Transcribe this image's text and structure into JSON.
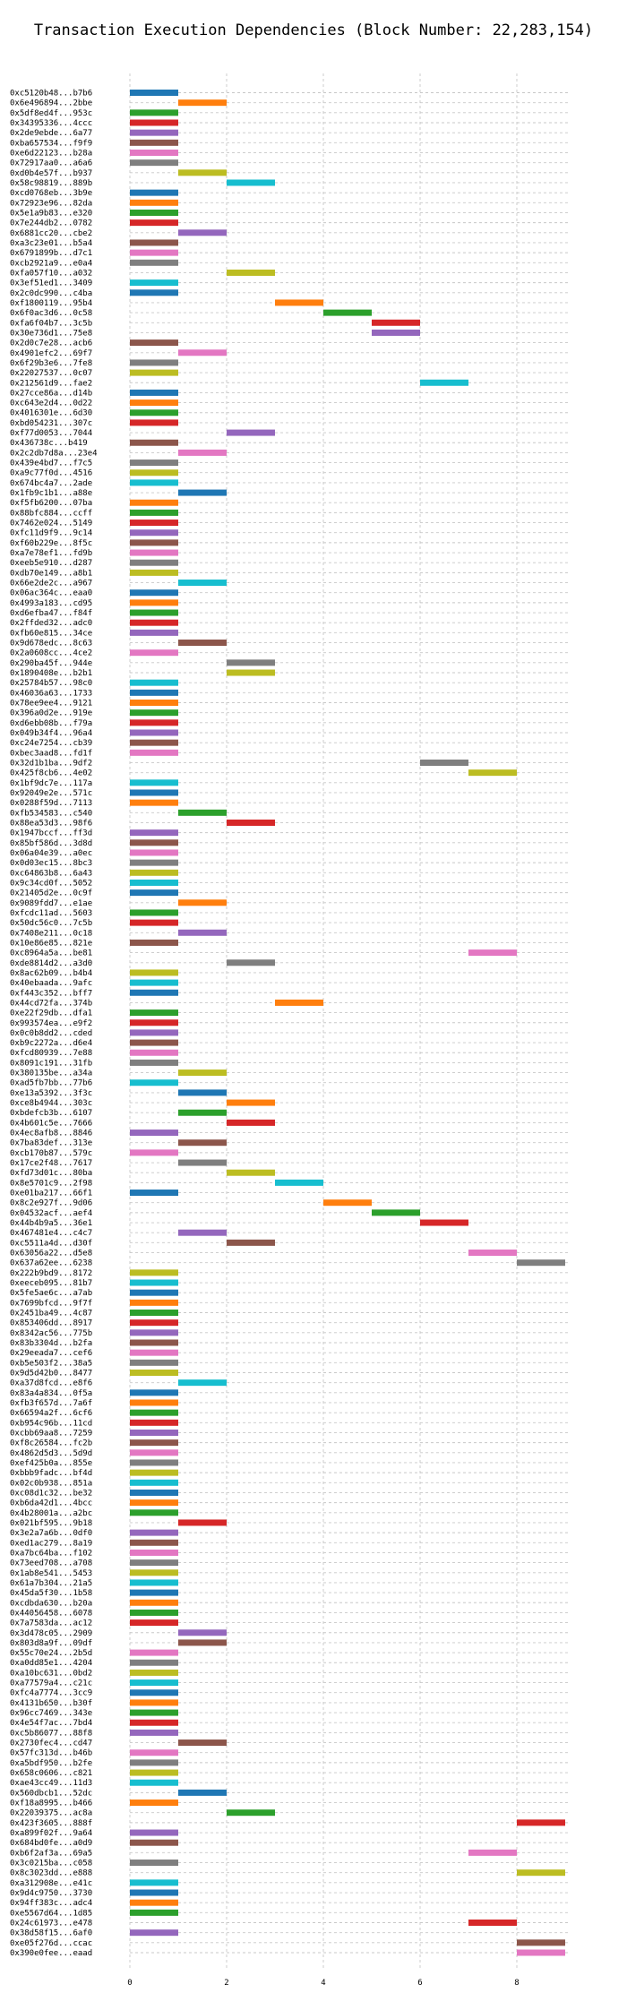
{
  "chart_data": {
    "type": "bar",
    "orientation": "horizontal",
    "title": "Transaction Execution Dependencies (Block Number: 22,283,154)",
    "xlabel": "",
    "ylabel": "",
    "xlim": [
      0,
      9
    ],
    "x_ticks": [
      0,
      2,
      4,
      6,
      8
    ],
    "grid": true,
    "legend": "none",
    "palette": [
      "#1f77b4",
      "#ff7f0e",
      "#2ca02c",
      "#d62728",
      "#9467bd",
      "#8c564b",
      "#e377c2",
      "#7f7f7f",
      "#bcbd22",
      "#17becf"
    ],
    "transactions": [
      {
        "label": "0xc5120b48...b7b6",
        "start": 0,
        "end": 1
      },
      {
        "label": "0x6e496894...2bbe",
        "start": 1,
        "end": 2
      },
      {
        "label": "0x5df8ed4f...953c",
        "start": 0,
        "end": 1
      },
      {
        "label": "0x34395336...4ccc",
        "start": 0,
        "end": 1
      },
      {
        "label": "0x2de9ebde...6a77",
        "start": 0,
        "end": 1
      },
      {
        "label": "0xba657534...f9f9",
        "start": 0,
        "end": 1
      },
      {
        "label": "0xe6d22123...b28a",
        "start": 0,
        "end": 1
      },
      {
        "label": "0x72917aa0...a6a6",
        "start": 0,
        "end": 1
      },
      {
        "label": "0xd0b4e57f...b937",
        "start": 1,
        "end": 2
      },
      {
        "label": "0x58c98819...889b",
        "start": 2,
        "end": 3
      },
      {
        "label": "0xcd0768eb...3b9e",
        "start": 0,
        "end": 1
      },
      {
        "label": "0x72923e96...82da",
        "start": 0,
        "end": 1
      },
      {
        "label": "0x5e1a9b83...e320",
        "start": 0,
        "end": 1
      },
      {
        "label": "0x7e244db2...0782",
        "start": 0,
        "end": 1
      },
      {
        "label": "0x6881cc20...cbe2",
        "start": 1,
        "end": 2
      },
      {
        "label": "0xa3c23e01...b5a4",
        "start": 0,
        "end": 1
      },
      {
        "label": "0x6791899b...d7c1",
        "start": 0,
        "end": 1
      },
      {
        "label": "0xcb2921a9...e0a4",
        "start": 0,
        "end": 1
      },
      {
        "label": "0xfa057f10...a032",
        "start": 2,
        "end": 3
      },
      {
        "label": "0x3ef51ed1...3409",
        "start": 0,
        "end": 1
      },
      {
        "label": "0x2c0dc990...c4ba",
        "start": 0,
        "end": 1
      },
      {
        "label": "0xf1800119...95b4",
        "start": 3,
        "end": 4
      },
      {
        "label": "0x6f0ac3d6...0c58",
        "start": 4,
        "end": 5
      },
      {
        "label": "0xfa6f04b7...3c5b",
        "start": 5,
        "end": 6
      },
      {
        "label": "0x30e736d1...75e8",
        "start": 5,
        "end": 6
      },
      {
        "label": "0x2d0c7e28...acb6",
        "start": 0,
        "end": 1
      },
      {
        "label": "0x4901efc2...69f7",
        "start": 1,
        "end": 2
      },
      {
        "label": "0x6f29b3e6...7fe8",
        "start": 0,
        "end": 1
      },
      {
        "label": "0x22027537...0c07",
        "start": 0,
        "end": 1
      },
      {
        "label": "0x212561d9...fae2",
        "start": 6,
        "end": 7
      },
      {
        "label": "0x27cce86a...d14b",
        "start": 0,
        "end": 1
      },
      {
        "label": "0xc643e2d4...0d22",
        "start": 0,
        "end": 1
      },
      {
        "label": "0x4016301e...6d30",
        "start": 0,
        "end": 1
      },
      {
        "label": "0xbd054231...307c",
        "start": 0,
        "end": 1
      },
      {
        "label": "0xf77d0053...7044",
        "start": 2,
        "end": 3
      },
      {
        "label": "0x436738c...b419",
        "start": 0,
        "end": 1
      },
      {
        "label": "0x2c2db7d8a...23e4",
        "start": 1,
        "end": 2
      },
      {
        "label": "0x439e4bd7...f7c5",
        "start": 0,
        "end": 1
      },
      {
        "label": "0xa9c77f0d...4516",
        "start": 0,
        "end": 1
      },
      {
        "label": "0x674bc4a7...2ade",
        "start": 0,
        "end": 1
      },
      {
        "label": "0x1fb9c1b1...a88e",
        "start": 1,
        "end": 2
      },
      {
        "label": "0xf5fb6200...07ba",
        "start": 0,
        "end": 1
      },
      {
        "label": "0x88bfc884...ccff",
        "start": 0,
        "end": 1
      },
      {
        "label": "0x7462e024...5149",
        "start": 0,
        "end": 1
      },
      {
        "label": "0xfc11d9f9...9c14",
        "start": 0,
        "end": 1
      },
      {
        "label": "0xf60b229e...8f5c",
        "start": 0,
        "end": 1
      },
      {
        "label": "0xa7e78ef1...fd9b",
        "start": 0,
        "end": 1
      },
      {
        "label": "0xeeb5e910...d287",
        "start": 0,
        "end": 1
      },
      {
        "label": "0xdb70e149...a8b1",
        "start": 0,
        "end": 1
      },
      {
        "label": "0x66e2de2c...a967",
        "start": 1,
        "end": 2
      },
      {
        "label": "0x06ac364c...eaa0",
        "start": 0,
        "end": 1
      },
      {
        "label": "0x4993a183...cd95",
        "start": 0,
        "end": 1
      },
      {
        "label": "0xd6efba47...f84f",
        "start": 0,
        "end": 1
      },
      {
        "label": "0x2ffded32...adc0",
        "start": 0,
        "end": 1
      },
      {
        "label": "0xfb60e815...34ce",
        "start": 0,
        "end": 1
      },
      {
        "label": "0x9d678edc...8c63",
        "start": 1,
        "end": 2
      },
      {
        "label": "0x2a0608cc...4ce2",
        "start": 0,
        "end": 1
      },
      {
        "label": "0x290ba45f...944e",
        "start": 2,
        "end": 3
      },
      {
        "label": "0x1890408e...b2b1",
        "start": 2,
        "end": 3
      },
      {
        "label": "0x25784b57...98c0",
        "start": 0,
        "end": 1
      },
      {
        "label": "0x46036a63...1733",
        "start": 0,
        "end": 1
      },
      {
        "label": "0x78ee9ee4...9121",
        "start": 0,
        "end": 1
      },
      {
        "label": "0x396a0d2e...919e",
        "start": 0,
        "end": 1
      },
      {
        "label": "0xd6ebb08b...f79a",
        "start": 0,
        "end": 1
      },
      {
        "label": "0x049b34f4...96a4",
        "start": 0,
        "end": 1
      },
      {
        "label": "0xc24e7254...cb39",
        "start": 0,
        "end": 1
      },
      {
        "label": "0xbec3aad8...fd1f",
        "start": 0,
        "end": 1
      },
      {
        "label": "0x32d1b1ba...9df2",
        "start": 6,
        "end": 7
      },
      {
        "label": "0x425f8cb6...4e02",
        "start": 7,
        "end": 8
      },
      {
        "label": "0x1bf9dc7e...117a",
        "start": 0,
        "end": 1
      },
      {
        "label": "0x92049e2e...571c",
        "start": 0,
        "end": 1
      },
      {
        "label": "0x0288f59d...7113",
        "start": 0,
        "end": 1
      },
      {
        "label": "0xfb534583...c540",
        "start": 1,
        "end": 2
      },
      {
        "label": "0x88ea53d3...98f6",
        "start": 2,
        "end": 3
      },
      {
        "label": "0x1947bccf...ff3d",
        "start": 0,
        "end": 1
      },
      {
        "label": "0x85bf586d...3d8d",
        "start": 0,
        "end": 1
      },
      {
        "label": "0x06a04e39...a0ec",
        "start": 0,
        "end": 1
      },
      {
        "label": "0x0d03ec15...8bc3",
        "start": 0,
        "end": 1
      },
      {
        "label": "0xc64863b8...6a43",
        "start": 0,
        "end": 1
      },
      {
        "label": "0x9c34cd0f...5052",
        "start": 0,
        "end": 1
      },
      {
        "label": "0x21405d2e...0c9f",
        "start": 0,
        "end": 1
      },
      {
        "label": "0x9089fdd7...e1ae",
        "start": 1,
        "end": 2
      },
      {
        "label": "0xfcdc11ad...5603",
        "start": 0,
        "end": 1
      },
      {
        "label": "0x50dc56c0...7c5b",
        "start": 0,
        "end": 1
      },
      {
        "label": "0x7408e211...0c18",
        "start": 1,
        "end": 2
      },
      {
        "label": "0x10e86e85...821e",
        "start": 0,
        "end": 1
      },
      {
        "label": "0xc8964a5a...be81",
        "start": 7,
        "end": 8
      },
      {
        "label": "0xde8814d2...a3d0",
        "start": 2,
        "end": 3
      },
      {
        "label": "0x8ac62b09...b4b4",
        "start": 0,
        "end": 1
      },
      {
        "label": "0x40ebaada...9afc",
        "start": 0,
        "end": 1
      },
      {
        "label": "0xf443c352...bff7",
        "start": 0,
        "end": 1
      },
      {
        "label": "0x44cd72fa...374b",
        "start": 3,
        "end": 4
      },
      {
        "label": "0xe22f29db...dfa1",
        "start": 0,
        "end": 1
      },
      {
        "label": "0x993574ea...e9f2",
        "start": 0,
        "end": 1
      },
      {
        "label": "0x0c0b8dd2...cded",
        "start": 0,
        "end": 1
      },
      {
        "label": "0xb9c2272a...d6e4",
        "start": 0,
        "end": 1
      },
      {
        "label": "0xfcd80939...7e88",
        "start": 0,
        "end": 1
      },
      {
        "label": "0x8091c191...31fb",
        "start": 0,
        "end": 1
      },
      {
        "label": "0x380135be...a34a",
        "start": 1,
        "end": 2
      },
      {
        "label": "0xad5fb7bb...77b6",
        "start": 0,
        "end": 1
      },
      {
        "label": "0xe13a5392...3f3c",
        "start": 1,
        "end": 2
      },
      {
        "label": "0xce8b4944...303c",
        "start": 2,
        "end": 3
      },
      {
        "label": "0xbdefcb3b...6107",
        "start": 1,
        "end": 2
      },
      {
        "label": "0x4b601c5e...7666",
        "start": 2,
        "end": 3
      },
      {
        "label": "0x4ec8afb8...8846",
        "start": 0,
        "end": 1
      },
      {
        "label": "0x7ba83def...313e",
        "start": 1,
        "end": 2
      },
      {
        "label": "0xcb170b87...579c",
        "start": 0,
        "end": 1
      },
      {
        "label": "0x17ce2f48...7617",
        "start": 1,
        "end": 2
      },
      {
        "label": "0xfd73d01c...80ba",
        "start": 2,
        "end": 3
      },
      {
        "label": "0x8e5701c9...2f98",
        "start": 3,
        "end": 4
      },
      {
        "label": "0xe01ba217...66f1",
        "start": 0,
        "end": 1
      },
      {
        "label": "0x8c2e927f...9d06",
        "start": 4,
        "end": 5
      },
      {
        "label": "0x04532acf...aef4",
        "start": 5,
        "end": 6
      },
      {
        "label": "0x44b4b9a5...36e1",
        "start": 6,
        "end": 7
      },
      {
        "label": "0x467481e4...c4c7",
        "start": 1,
        "end": 2
      },
      {
        "label": "0xc5511a4d...d30f",
        "start": 2,
        "end": 3
      },
      {
        "label": "0x63056a22...d5e8",
        "start": 7,
        "end": 8
      },
      {
        "label": "0x637a62ee...6238",
        "start": 8,
        "end": 9
      },
      {
        "label": "0x222b9bd9...8172",
        "start": 0,
        "end": 1
      },
      {
        "label": "0xeeceb095...81b7",
        "start": 0,
        "end": 1
      },
      {
        "label": "0x5fe5ae6c...a7ab",
        "start": 0,
        "end": 1
      },
      {
        "label": "0x7699bfcd...9f7f",
        "start": 0,
        "end": 1
      },
      {
        "label": "0x2451ba49...4c87",
        "start": 0,
        "end": 1
      },
      {
        "label": "0x853406dd...8917",
        "start": 0,
        "end": 1
      },
      {
        "label": "0x8342ac56...775b",
        "start": 0,
        "end": 1
      },
      {
        "label": "0x83b3304d...b2fa",
        "start": 0,
        "end": 1
      },
      {
        "label": "0x29eeada7...cef6",
        "start": 0,
        "end": 1
      },
      {
        "label": "0xb5e503f2...38a5",
        "start": 0,
        "end": 1
      },
      {
        "label": "0x9d5d42b0...8477",
        "start": 0,
        "end": 1
      },
      {
        "label": "0xa37d8fcd...e8f6",
        "start": 1,
        "end": 2
      },
      {
        "label": "0x83a4a834...0f5a",
        "start": 0,
        "end": 1
      },
      {
        "label": "0xfb3f657d...7a6f",
        "start": 0,
        "end": 1
      },
      {
        "label": "0x66594a2f...6cf6",
        "start": 0,
        "end": 1
      },
      {
        "label": "0xb954c96b...11cd",
        "start": 0,
        "end": 1
      },
      {
        "label": "0xcbb69aa8...7259",
        "start": 0,
        "end": 1
      },
      {
        "label": "0xf8c26584...fc2b",
        "start": 0,
        "end": 1
      },
      {
        "label": "0x4862d5d3...5d9d",
        "start": 0,
        "end": 1
      },
      {
        "label": "0xef425b0a...855e",
        "start": 0,
        "end": 1
      },
      {
        "label": "0xbbb9fadc...bf4d",
        "start": 0,
        "end": 1
      },
      {
        "label": "0x02c0b938...851a",
        "start": 0,
        "end": 1
      },
      {
        "label": "0xc08d1c32...be32",
        "start": 0,
        "end": 1
      },
      {
        "label": "0xb6da42d1...4bcc",
        "start": 0,
        "end": 1
      },
      {
        "label": "0x4b28001a...a2bc",
        "start": 0,
        "end": 1
      },
      {
        "label": "0x021bf595...9b18",
        "start": 1,
        "end": 2
      },
      {
        "label": "0x3e2a7a6b...0df0",
        "start": 0,
        "end": 1
      },
      {
        "label": "0xed1ac279...8a19",
        "start": 0,
        "end": 1
      },
      {
        "label": "0xa7bc64ba...f102",
        "start": 0,
        "end": 1
      },
      {
        "label": "0x73eed708...a708",
        "start": 0,
        "end": 1
      },
      {
        "label": "0x1ab8e541...5453",
        "start": 0,
        "end": 1
      },
      {
        "label": "0x61a7b304...21a5",
        "start": 0,
        "end": 1
      },
      {
        "label": "0x45da5f30...1b58",
        "start": 0,
        "end": 1
      },
      {
        "label": "0xcdbda630...b20a",
        "start": 0,
        "end": 1
      },
      {
        "label": "0x44056458...6078",
        "start": 0,
        "end": 1
      },
      {
        "label": "0x7a7583da...ac12",
        "start": 0,
        "end": 1
      },
      {
        "label": "0x3d478c05...2909",
        "start": 1,
        "end": 2
      },
      {
        "label": "0x803d8a9f...09df",
        "start": 1,
        "end": 2
      },
      {
        "label": "0x55c70e24...2b5d",
        "start": 0,
        "end": 1
      },
      {
        "label": "0xa0dd85e1...4204",
        "start": 0,
        "end": 1
      },
      {
        "label": "0xa10bc631...0bd2",
        "start": 0,
        "end": 1
      },
      {
        "label": "0xa77579a4...c21c",
        "start": 0,
        "end": 1
      },
      {
        "label": "0xfc4a7774...3cc9",
        "start": 0,
        "end": 1
      },
      {
        "label": "0x4131b650...b30f",
        "start": 0,
        "end": 1
      },
      {
        "label": "0x96cc7469...343e",
        "start": 0,
        "end": 1
      },
      {
        "label": "0x4e54f7ac...7bd4",
        "start": 0,
        "end": 1
      },
      {
        "label": "0xc5b86077...88f8",
        "start": 0,
        "end": 1
      },
      {
        "label": "0x2730fec4...cd47",
        "start": 1,
        "end": 2
      },
      {
        "label": "0x57fc313d...b46b",
        "start": 0,
        "end": 1
      },
      {
        "label": "0xa5bdf950...b2fe",
        "start": 0,
        "end": 1
      },
      {
        "label": "0x658c0606...c821",
        "start": 0,
        "end": 1
      },
      {
        "label": "0xae43cc49...11d3",
        "start": 0,
        "end": 1
      },
      {
        "label": "0x560dbcb1...52dc",
        "start": 1,
        "end": 2
      },
      {
        "label": "0xf18a8995...b466",
        "start": 0,
        "end": 1
      },
      {
        "label": "0x22039375...ac8a",
        "start": 2,
        "end": 3
      },
      {
        "label": "0x423f3605...888f",
        "start": 8,
        "end": 9
      },
      {
        "label": "0xa899f02f...9a64",
        "start": 0,
        "end": 1
      },
      {
        "label": "0x684bd0fe...a0d9",
        "start": 0,
        "end": 1
      },
      {
        "label": "0xb6f2af3a...69a5",
        "start": 7,
        "end": 8
      },
      {
        "label": "0x3c0215ba...c058",
        "start": 0,
        "end": 1
      },
      {
        "label": "0x8c3023dd...e888",
        "start": 8,
        "end": 9
      },
      {
        "label": "0xa312908e...e41c",
        "start": 0,
        "end": 1
      },
      {
        "label": "0x9d4c9750...3730",
        "start": 0,
        "end": 1
      },
      {
        "label": "0x94ff383c...adc4",
        "start": 0,
        "end": 1
      },
      {
        "label": "0xe5567d64...1d85",
        "start": 0,
        "end": 1
      },
      {
        "label": "0x24c61973...e478",
        "start": 7,
        "end": 8
      },
      {
        "label": "0x38d58f15...6af0",
        "start": 0,
        "end": 1
      },
      {
        "label": "0xe05f276d...ccac",
        "start": 8,
        "end": 9
      },
      {
        "label": "0x390e0fee...eaad",
        "start": 8,
        "end": 9
      }
    ]
  }
}
